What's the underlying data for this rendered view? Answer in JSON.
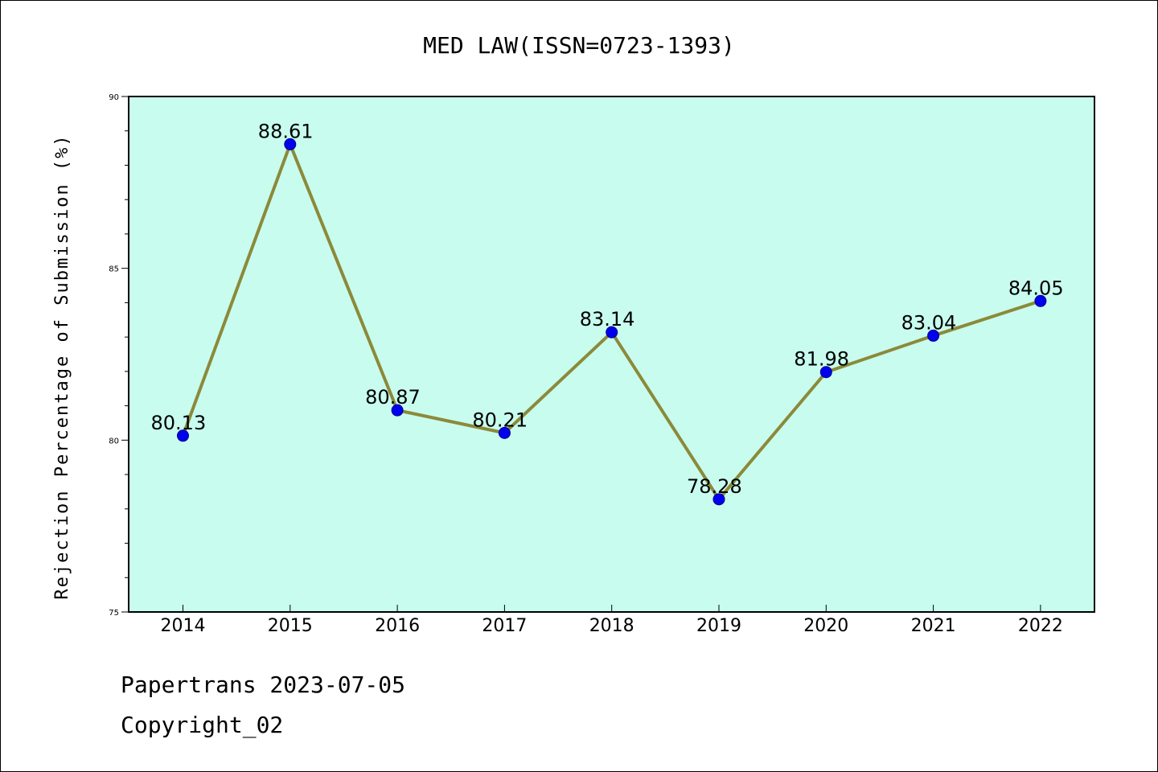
{
  "chart_data": {
    "type": "line",
    "title": "MED LAW(ISSN=0723-1393)",
    "xlabel": "",
    "ylabel": "Rejection Percentage of Submission (%)",
    "categories": [
      "2014",
      "2015",
      "2016",
      "2017",
      "2018",
      "2019",
      "2020",
      "2021",
      "2022"
    ],
    "series": [
      {
        "values": [
          80.13,
          88.61,
          80.87,
          80.21,
          83.14,
          78.28,
          81.98,
          83.04,
          84.05
        ],
        "data_labels": [
          "80.13",
          "88.61",
          "80.87",
          "80.21",
          "83.14",
          "78.28",
          "81.98",
          "83.04",
          "84.05"
        ]
      }
    ],
    "ylim": [
      75,
      90
    ],
    "yticks": [
      "75",
      "80",
      "85",
      "90"
    ],
    "grid": false,
    "colors": {
      "plot_background": "#c8fcee",
      "line": "#8b8a3a",
      "marker": "#0000ee",
      "marker_edge": "#00008b"
    }
  },
  "footer": {
    "line1": "Papertrans 2023-07-05",
    "line2": "Copyright_02"
  }
}
